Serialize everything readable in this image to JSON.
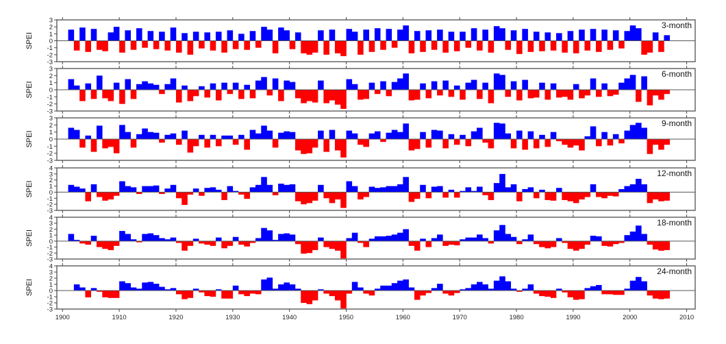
{
  "chart_data": {
    "type": "area",
    "x_start_year": 1901,
    "x_step": "year",
    "xlim": [
      1899,
      2011.5
    ],
    "xticks": [
      "1900",
      "1910",
      "1920",
      "1930",
      "1940",
      "1950",
      "1960",
      "1970",
      "1980",
      "1990",
      "2000",
      "2010"
    ],
    "colors": {
      "positive": "#0000ff",
      "negative": "#ff0000",
      "zero_line": "#555555"
    },
    "grid": false,
    "panels": [
      {
        "label": "3-month",
        "ylabel": "SPEI",
        "ylim": [
          -3,
          3
        ],
        "yticks": [
          "3",
          "2",
          "1",
          "0",
          "-1",
          "-2",
          "-3"
        ],
        "values": [
          1.6,
          -1.4,
          1.9,
          -1.6,
          1.7,
          -1.3,
          -1.5,
          1.2,
          2.0,
          -1.7,
          1.5,
          -1.3,
          1.8,
          -1.0,
          1.4,
          -1.2,
          1.3,
          -1.4,
          1.9,
          -1.7,
          1.1,
          -2.0,
          1.3,
          -1.1,
          1.2,
          -1.4,
          1.3,
          -1.7,
          1.5,
          -1.2,
          1.0,
          -1.3,
          1.4,
          -1.0,
          2.0,
          1.6,
          -1.8,
          1.9,
          1.5,
          -1.2,
          1.2,
          -1.8,
          -2.0,
          -1.7,
          1.5,
          -2.0,
          1.6,
          -1.8,
          -2.2,
          1.7,
          1.3,
          -2.0,
          1.6,
          -1.6,
          1.8,
          -1.3,
          1.7,
          -1.0,
          1.6,
          2.2,
          -1.8,
          1.4,
          -1.6,
          1.5,
          -1.3,
          1.6,
          -1.7,
          1.3,
          -1.5,
          1.3,
          -1.0,
          1.8,
          -1.4,
          1.6,
          -1.7,
          2.1,
          1.8,
          -1.3,
          1.5,
          -1.9,
          1.7,
          -1.6,
          1.3,
          -1.5,
          1.2,
          -1.4,
          1.1,
          -1.7,
          1.4,
          -1.8,
          1.6,
          -1.4,
          1.7,
          -1.6,
          1.6,
          -1.3,
          1.5,
          -1.1,
          1.4,
          2.2,
          1.8,
          -2.0,
          -1.7,
          1.2,
          -1.6,
          0.8
        ]
      },
      {
        "label": "6-month",
        "ylabel": "SPEI",
        "ylim": [
          -3,
          3
        ],
        "yticks": [
          "3",
          "2",
          "1",
          "0",
          "-1",
          "-2",
          "-3"
        ],
        "values": [
          1.5,
          0.6,
          -1.6,
          0.9,
          -1.3,
          2.0,
          -1.2,
          -1.6,
          1.0,
          -2.0,
          1.5,
          -1.3,
          0.8,
          1.2,
          0.9,
          0.7,
          -0.6,
          0.8,
          1.6,
          -1.8,
          0.6,
          -1.6,
          -0.9,
          0.5,
          -1.1,
          0.9,
          -1.5,
          1.0,
          -0.6,
          1.0,
          -1.3,
          0.7,
          -1.2,
          1.3,
          1.8,
          -0.8,
          1.6,
          -1.6,
          1.3,
          1.1,
          -1.2,
          -1.9,
          -1.6,
          -1.8,
          1.3,
          -1.9,
          -1.5,
          -2.1,
          -2.7,
          1.5,
          0.8,
          -1.4,
          -1.3,
          1.0,
          -0.6,
          1.2,
          -0.9,
          1.1,
          1.6,
          2.3,
          -1.5,
          -1.4,
          0.9,
          -1.2,
          1.2,
          -0.8,
          1.3,
          -1.0,
          0.6,
          -1.4,
          1.0,
          1.4,
          -1.3,
          1.0,
          -1.9,
          2.3,
          2.1,
          -1.0,
          1.2,
          -1.5,
          1.4,
          -1.2,
          -1.1,
          1.0,
          -1.4,
          0.9,
          -1.1,
          -1.0,
          -1.4,
          0.8,
          -1.2,
          -0.8,
          1.6,
          -1.0,
          0.9,
          -0.9,
          -0.7,
          1.0,
          1.6,
          2.1,
          -1.7,
          1.9,
          -2.2,
          -0.8,
          -1.4,
          -0.6
        ]
      },
      {
        "label": "9-month",
        "ylabel": "SPEI",
        "ylim": [
          -3,
          3
        ],
        "yticks": [
          "3",
          "2",
          "1",
          "0",
          "-1",
          "-2",
          "-3"
        ],
        "values": [
          1.6,
          1.3,
          -1.2,
          0.5,
          -1.8,
          1.9,
          -1.3,
          -1.1,
          -2.0,
          2.0,
          1.0,
          -1.2,
          0.7,
          1.5,
          1.0,
          0.9,
          -0.5,
          0.6,
          0.8,
          -0.8,
          1.2,
          -1.9,
          -1.0,
          0.6,
          -1.2,
          0.6,
          -1.0,
          0.5,
          0.5,
          -0.8,
          0.6,
          -1.5,
          1.3,
          0.8,
          1.9,
          1.2,
          -1.2,
          0.9,
          1.1,
          1.0,
          -1.6,
          -2.1,
          -2.0,
          -1.2,
          1.2,
          -1.8,
          1.3,
          -1.6,
          -2.6,
          1.2,
          0.8,
          -0.8,
          -1.1,
          0.8,
          1.1,
          -0.4,
          0.9,
          1.3,
          1.0,
          2.2,
          -1.6,
          -1.4,
          1.0,
          -1.2,
          1.3,
          1.2,
          -1.3,
          0.7,
          -0.8,
          0.6,
          -1.0,
          1.1,
          1.6,
          -0.5,
          -1.3,
          2.3,
          2.2,
          0.8,
          -1.3,
          1.2,
          -1.5,
          1.1,
          -1.3,
          0.6,
          -1.1,
          1.0,
          -0.3,
          -0.8,
          -1.2,
          -0.9,
          -1.6,
          0.4,
          1.8,
          -1.0,
          1.0,
          -0.9,
          0.7,
          -0.6,
          1.2,
          2.0,
          2.3,
          1.6,
          -2.1,
          -0.8,
          -1.5,
          -0.8
        ]
      },
      {
        "label": "12-month",
        "ylabel": "SPEI",
        "ylim": [
          -3,
          4
        ],
        "yticks": [
          "4",
          "3",
          "2",
          "1",
          "0",
          "-1",
          "-2",
          "-3"
        ],
        "values": [
          1.2,
          0.9,
          0.6,
          -1.5,
          1.3,
          -0.8,
          -1.4,
          -1.2,
          -0.6,
          1.8,
          1.0,
          0.8,
          -0.3,
          1.0,
          1.0,
          1.1,
          -0.3,
          0.6,
          1.2,
          -1.0,
          -2.1,
          -0.4,
          0.6,
          -0.6,
          0.7,
          0.8,
          0.4,
          -1.3,
          1.0,
          0.2,
          -0.4,
          -1.1,
          0.8,
          1.2,
          2.5,
          1.2,
          -0.5,
          1.4,
          1.2,
          1.3,
          -1.5,
          -2.0,
          -1.8,
          -1.4,
          1.2,
          -1.0,
          -1.8,
          -1.2,
          -2.6,
          1.8,
          1.0,
          -1.2,
          -0.8,
          0.9,
          0.7,
          0.8,
          1.0,
          1.0,
          1.3,
          2.5,
          -1.6,
          -1.1,
          1.2,
          -1.0,
          0.9,
          1.0,
          -0.9,
          0.4,
          -0.9,
          0.2,
          0.8,
          0.2,
          0.9,
          -0.5,
          -1.3,
          1.5,
          3.0,
          0.8,
          1.3,
          -1.5,
          0.5,
          0.8,
          -1.0,
          0.4,
          -1.3,
          -1.4,
          0.7,
          -1.3,
          -1.5,
          -1.8,
          -1.2,
          -0.8,
          1.3,
          -0.8,
          -1.0,
          -0.6,
          -0.7,
          0.5,
          1.0,
          1.3,
          2.2,
          1.3,
          -1.8,
          -1.2,
          -1.5,
          -1.4
        ]
      },
      {
        "label": "18-month",
        "ylabel": "SPEI",
        "ylim": [
          -3,
          4
        ],
        "yticks": [
          "4",
          "3",
          "2",
          "1",
          "0",
          "-1",
          "-2",
          "-3"
        ],
        "values": [
          1.2,
          0.2,
          -0.4,
          -0.6,
          0.9,
          -1.0,
          -1.3,
          -1.5,
          -0.8,
          1.7,
          1.2,
          0.3,
          -0.2,
          1.2,
          1.3,
          1.0,
          0.5,
          0.3,
          0.6,
          -0.3,
          -1.6,
          -0.8,
          0.4,
          -0.4,
          -0.6,
          -0.8,
          0.6,
          -1.2,
          -0.8,
          0.7,
          -0.6,
          -0.9,
          -0.3,
          0.5,
          2.2,
          1.8,
          0.2,
          1.2,
          1.3,
          1.1,
          -0.5,
          -2.1,
          -2.0,
          -1.5,
          0.6,
          -1.0,
          -1.3,
          -1.6,
          -2.9,
          0.5,
          1.4,
          -0.3,
          -1.0,
          0.4,
          0.8,
          0.8,
          0.9,
          1.1,
          1.4,
          2.0,
          -0.8,
          -1.6,
          0.4,
          -1.0,
          0.5,
          1.1,
          -0.8,
          -0.6,
          -0.7,
          0.3,
          0.6,
          0.6,
          1.1,
          0.5,
          -0.4,
          1.8,
          2.7,
          1.2,
          0.7,
          -0.5,
          0.3,
          1.1,
          -0.5,
          -1.0,
          -1.2,
          -1.0,
          0.5,
          -0.3,
          -1.3,
          -1.6,
          -1.3,
          -0.6,
          0.9,
          0.8,
          -0.8,
          -0.9,
          -0.5,
          -0.3,
          1.0,
          1.6,
          2.6,
          1.2,
          -0.6,
          -1.4,
          -1.6,
          -1.5
        ]
      },
      {
        "label": "24-month",
        "ylabel": "SPEI",
        "ylim": [
          -3,
          4
        ],
        "yticks": [
          "4",
          "3",
          "2",
          "1",
          "0",
          "-1",
          "-2",
          "-3"
        ],
        "values": [
          0.0,
          1.0,
          0.5,
          -1.1,
          0.4,
          -0.2,
          -1.1,
          -1.2,
          -1.2,
          1.5,
          1.2,
          0.5,
          0.3,
          1.3,
          1.4,
          1.1,
          0.6,
          0.2,
          0.4,
          -0.6,
          -1.4,
          -1.2,
          0.3,
          -0.3,
          -0.9,
          -1.0,
          0.2,
          -1.3,
          -1.3,
          0.8,
          -0.6,
          -0.9,
          -0.5,
          -0.6,
          1.8,
          2.1,
          0.3,
          1.0,
          1.3,
          1.0,
          0.3,
          -2.0,
          -2.2,
          -1.6,
          0.2,
          -0.5,
          -0.9,
          -1.6,
          -2.9,
          -0.5,
          1.4,
          0.5,
          -0.5,
          -0.8,
          0.3,
          0.8,
          0.8,
          1.2,
          1.6,
          1.8,
          0.5,
          -1.5,
          -0.8,
          -0.4,
          0.4,
          1.1,
          -0.5,
          -0.8,
          -0.4,
          0.2,
          0.4,
          1.0,
          1.4,
          1.0,
          0.3,
          1.6,
          2.3,
          1.5,
          0.3,
          -0.2,
          0.3,
          1.0,
          -0.5,
          -0.9,
          -1.0,
          -1.2,
          0.3,
          -0.3,
          -1.1,
          -1.5,
          -1.4,
          0.4,
          0.7,
          0.9,
          -0.6,
          -0.6,
          -0.7,
          -0.7,
          0.3,
          1.6,
          2.2,
          1.5,
          -0.8,
          -1.3,
          -1.4,
          -1.3
        ]
      }
    ]
  }
}
